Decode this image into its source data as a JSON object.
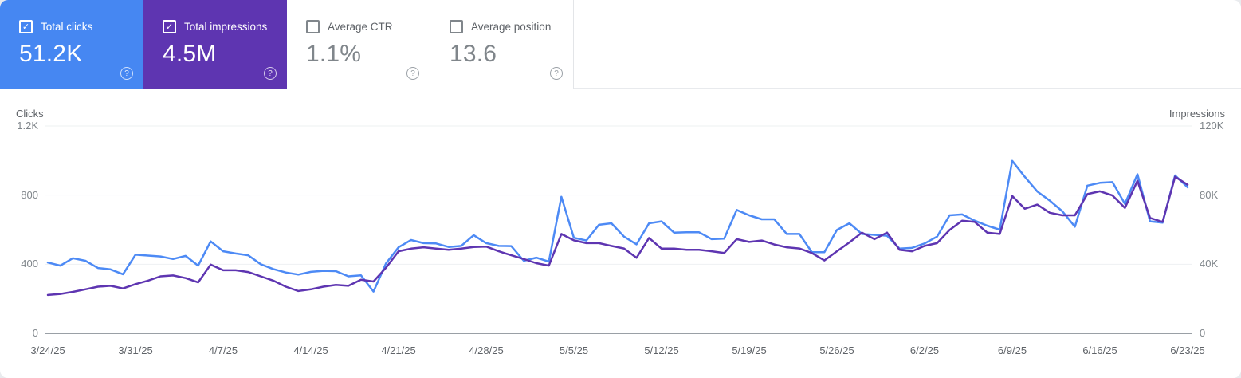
{
  "icons": {
    "help": "?",
    "check": "✓"
  },
  "cards": [
    {
      "label": "Total clicks",
      "value": "51.2K",
      "checked": true,
      "color": "#4687f2"
    },
    {
      "label": "Total impressions",
      "value": "4.5M",
      "checked": true,
      "color": "#5e35b1"
    },
    {
      "label": "Average CTR",
      "value": "1.1%",
      "checked": false
    },
    {
      "label": "Average position",
      "value": "13.6",
      "checked": false
    }
  ],
  "chart_data": {
    "type": "line",
    "left_axis": {
      "title": "Clicks",
      "max": 1200,
      "ticks": [
        "1.2K",
        "800",
        "400",
        "0"
      ]
    },
    "right_axis": {
      "title": "Impressions",
      "max": 120000,
      "ticks": [
        "120K",
        "80K",
        "40K",
        "0"
      ]
    },
    "grid": true,
    "legend_position": "none",
    "x_tick_labels": [
      "3/24/25",
      "3/31/25",
      "4/7/25",
      "4/14/25",
      "4/21/25",
      "4/28/25",
      "5/5/25",
      "5/12/25",
      "5/19/25",
      "5/26/25",
      "6/2/25",
      "6/9/25",
      "6/16/25",
      "6/23/25"
    ],
    "x": [
      "3/24/25",
      "3/25/25",
      "3/26/25",
      "3/27/25",
      "3/28/25",
      "3/29/25",
      "3/30/25",
      "3/31/25",
      "4/1/25",
      "4/2/25",
      "4/3/25",
      "4/4/25",
      "4/5/25",
      "4/6/25",
      "4/7/25",
      "4/8/25",
      "4/9/25",
      "4/10/25",
      "4/11/25",
      "4/12/25",
      "4/13/25",
      "4/14/25",
      "4/15/25",
      "4/16/25",
      "4/17/25",
      "4/18/25",
      "4/19/25",
      "4/20/25",
      "4/21/25",
      "4/22/25",
      "4/23/25",
      "4/24/25",
      "4/25/25",
      "4/26/25",
      "4/27/25",
      "4/28/25",
      "4/29/25",
      "4/30/25",
      "5/1/25",
      "5/2/25",
      "5/3/25",
      "5/4/25",
      "5/5/25",
      "5/6/25",
      "5/7/25",
      "5/8/25",
      "5/9/25",
      "5/10/25",
      "5/11/25",
      "5/12/25",
      "5/13/25",
      "5/14/25",
      "5/15/25",
      "5/16/25",
      "5/17/25",
      "5/18/25",
      "5/19/25",
      "5/20/25",
      "5/21/25",
      "5/22/25",
      "5/23/25",
      "5/24/25",
      "5/25/25",
      "5/26/25",
      "5/27/25",
      "5/28/25",
      "5/29/25",
      "5/30/25",
      "5/31/25",
      "6/1/25",
      "6/2/25",
      "6/3/25",
      "6/4/25",
      "6/5/25",
      "6/6/25",
      "6/7/25",
      "6/8/25",
      "6/9/25",
      "6/10/25",
      "6/11/25",
      "6/12/25",
      "6/13/25",
      "6/14/25",
      "6/15/25",
      "6/16/25",
      "6/17/25",
      "6/18/25",
      "6/19/25",
      "6/20/25",
      "6/21/25",
      "6/22/25",
      "6/23/25"
    ],
    "series": [
      {
        "name": "Total clicks",
        "axis": "left",
        "color": "#4d8af5",
        "values": [
          410,
          392,
          435,
          420,
          378,
          370,
          342,
          455,
          450,
          445,
          430,
          448,
          392,
          532,
          475,
          462,
          452,
          400,
          372,
          352,
          340,
          356,
          362,
          360,
          330,
          336,
          242,
          405,
          498,
          540,
          522,
          520,
          500,
          506,
          568,
          522,
          506,
          505,
          420,
          438,
          415,
          790,
          553,
          537,
          628,
          637,
          560,
          515,
          637,
          648,
          583,
          585,
          585,
          545,
          548,
          714,
          683,
          660,
          660,
          575,
          575,
          470,
          470,
          598,
          637,
          575,
          570,
          565,
          490,
          495,
          520,
          560,
          683,
          688,
          652,
          623,
          600,
          998,
          906,
          821,
          768,
          706,
          617,
          855,
          871,
          875,
          749,
          921,
          648,
          640,
          914,
          845
        ]
      },
      {
        "name": "Total impressions",
        "axis": "right",
        "color": "#5e35b1",
        "values": [
          22200,
          22800,
          24000,
          25500,
          27000,
          27500,
          26000,
          28500,
          30500,
          33000,
          33500,
          32000,
          29500,
          39800,
          36500,
          36500,
          35500,
          33000,
          30500,
          27000,
          24500,
          25500,
          27000,
          28000,
          27500,
          31000,
          30000,
          38000,
          47500,
          49000,
          49800,
          49000,
          48300,
          49000,
          50000,
          50200,
          47500,
          45200,
          43000,
          40600,
          39200,
          57500,
          53800,
          52200,
          52200,
          50600,
          49100,
          43700,
          55200,
          49000,
          49000,
          48300,
          48300,
          47500,
          46500,
          54500,
          52900,
          53700,
          51400,
          49800,
          49100,
          46500,
          42200,
          47500,
          52600,
          58300,
          54500,
          58300,
          48300,
          47500,
          50600,
          52200,
          59800,
          65200,
          64500,
          58300,
          57500,
          79500,
          72100,
          74500,
          69800,
          68300,
          68300,
          80600,
          82200,
          79800,
          72600,
          88300,
          66800,
          64500,
          90600,
          86000
        ]
      }
    ]
  }
}
